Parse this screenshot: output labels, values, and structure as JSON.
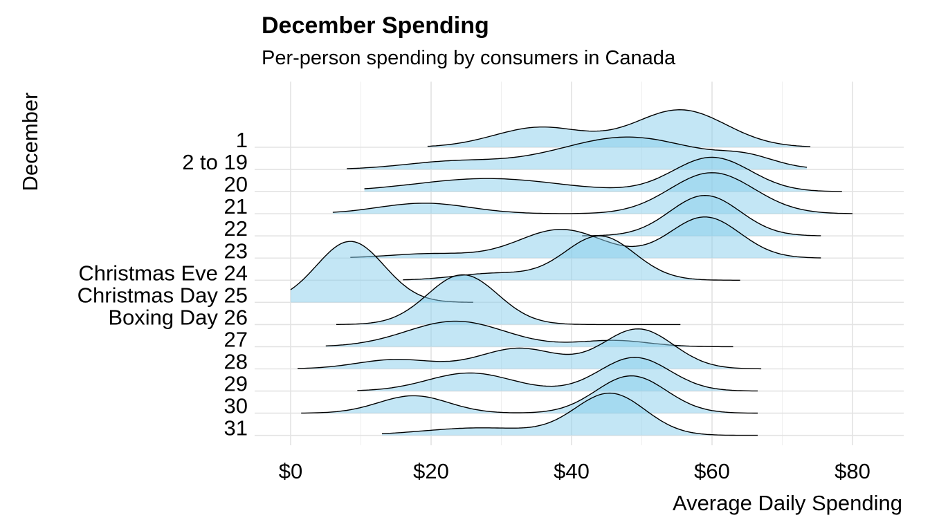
{
  "chart_data": {
    "type": "ridgeline",
    "title": "December Spending",
    "subtitle": "Per-person spending by consumers in Canada",
    "xlabel": "Average Daily Spending",
    "ylabel": "December",
    "xlim": [
      -5,
      87
    ],
    "x_ticks": [
      "$0",
      "$20",
      "$40",
      "$60",
      "$80"
    ],
    "x_tick_values": [
      0,
      20,
      40,
      60,
      80
    ],
    "grid": true,
    "fill_color": "#87CEEB",
    "fill_opacity": 0.5,
    "line_color": "#000000",
    "categories": [
      "1",
      "2 to 19",
      "20",
      "21",
      "22",
      "23",
      "Christmas Eve 24",
      "Christmas Day 25",
      "Boxing Day 26",
      "27",
      "28",
      "29",
      "30",
      "31"
    ],
    "series": [
      {
        "x_range": [
          19.5,
          74
        ],
        "peaks": [
          [
            35.5,
            1.6,
            6.5
          ],
          [
            55.5,
            3.0,
            6.5
          ]
        ]
      },
      {
        "x_range": [
          8,
          73.5
        ],
        "peaks": [
          [
            23,
            0.6,
            7
          ],
          [
            48,
            2.6,
            10
          ],
          [
            65,
            0.7,
            4
          ]
        ]
      },
      {
        "x_range": [
          10.5,
          78.5
        ],
        "peaks": [
          [
            28,
            1.05,
            10
          ],
          [
            60,
            2.75,
            5.5
          ]
        ]
      },
      {
        "x_range": [
          6,
          80
        ],
        "peaks": [
          [
            19,
            0.85,
            6.5
          ],
          [
            60,
            3.3,
            6
          ]
        ]
      },
      {
        "x_range": [
          41.5,
          75.5
        ],
        "peaks": [
          [
            59,
            3.25,
            5
          ]
        ]
      },
      {
        "x_range": [
          8.5,
          75.5
        ],
        "peaks": [
          [
            20,
            0.35,
            6
          ],
          [
            38.5,
            2.3,
            6
          ],
          [
            59,
            3.3,
            5
          ]
        ]
      },
      {
        "x_range": [
          16,
          64
        ],
        "peaks": [
          [
            29,
            0.55,
            5.5
          ],
          [
            44,
            3.55,
            5
          ]
        ]
      },
      {
        "x_range": [
          0,
          26
        ],
        "peaks": [
          [
            8.5,
            4.9,
            4.8
          ]
        ]
      },
      {
        "x_range": [
          6.5,
          55.5
        ],
        "peaks": [
          [
            24.5,
            4.0,
            5
          ]
        ]
      },
      {
        "x_range": [
          5,
          63
        ],
        "peaks": [
          [
            23.5,
            2.05,
            7
          ],
          [
            46,
            0.5,
            5
          ]
        ]
      },
      {
        "x_range": [
          1,
          67
        ],
        "peaks": [
          [
            15,
            0.75,
            5.5
          ],
          [
            32.5,
            1.65,
            5.5
          ],
          [
            49.5,
            3.2,
            5
          ]
        ]
      },
      {
        "x_range": [
          9.5,
          66.5
        ],
        "peaks": [
          [
            25.5,
            1.45,
            6
          ],
          [
            49,
            2.7,
            5
          ]
        ]
      },
      {
        "x_range": [
          1.5,
          66.5
        ],
        "peaks": [
          [
            17.5,
            1.4,
            5
          ],
          [
            48.5,
            3.0,
            5
          ]
        ]
      },
      {
        "x_range": [
          13,
          66.5
        ],
        "peaks": [
          [
            27,
            0.6,
            8
          ],
          [
            45.5,
            3.35,
            5
          ]
        ]
      }
    ]
  }
}
